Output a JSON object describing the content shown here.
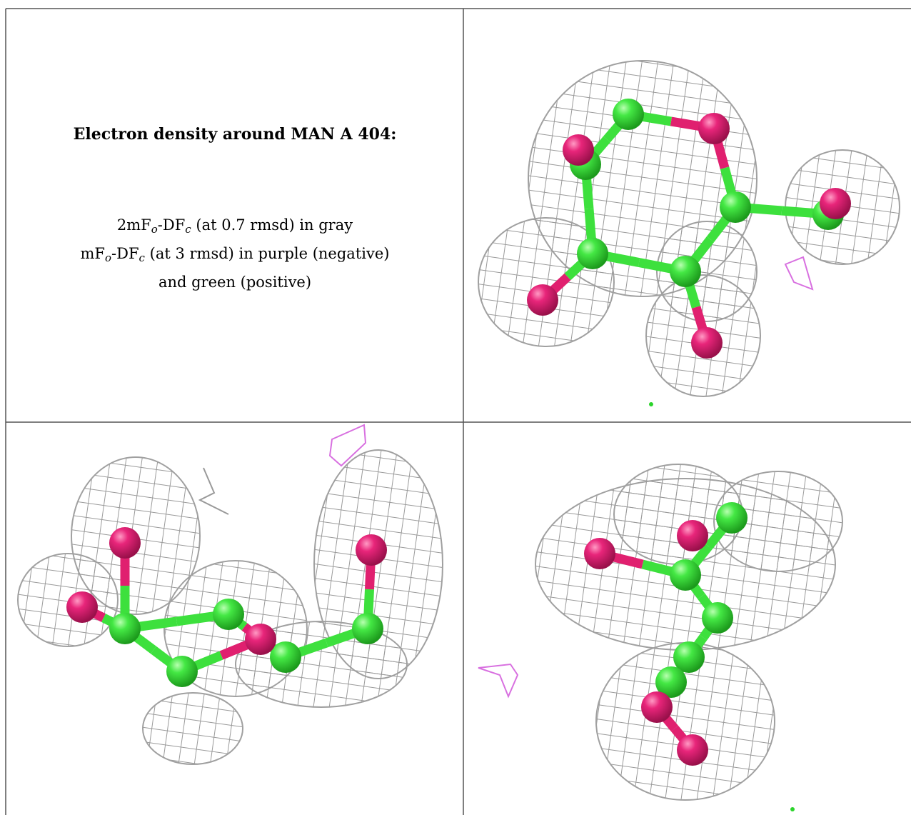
{
  "description": {
    "title": "Electron density around MAN A 404:",
    "lines": [
      [
        "2mF",
        "o",
        "-DF",
        "c",
        " (at 0.7 rmsd) in gray"
      ],
      [
        "mF",
        "o",
        "-DF",
        "c",
        " (at 3 rmsd) in purple (negative)"
      ],
      [
        "and green (positive)"
      ]
    ]
  }
}
